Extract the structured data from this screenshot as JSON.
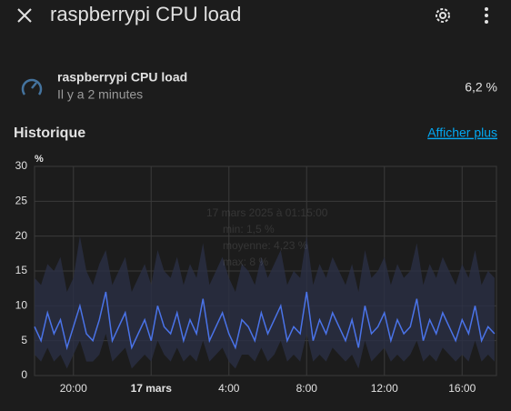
{
  "header": {
    "title": "raspberrypi CPU load"
  },
  "entity": {
    "name": "raspberrypi CPU load",
    "last_changed": "Il y a 2 minutes",
    "state": "6,2 %"
  },
  "history": {
    "title": "Historique",
    "link": "Afficher plus"
  },
  "chart_data": {
    "type": "line",
    "y_unit": "%",
    "categories": [
      null,
      null,
      null,
      null,
      null,
      null,
      "20:00",
      null,
      null,
      null,
      null,
      null,
      null,
      null,
      null,
      null,
      null,
      null,
      "17 mars",
      null,
      null,
      null,
      null,
      null,
      null,
      null,
      null,
      null,
      null,
      null,
      "4:00",
      null,
      null,
      null,
      null,
      null,
      null,
      null,
      null,
      null,
      null,
      null,
      "8:00",
      null,
      null,
      null,
      null,
      null,
      null,
      null,
      null,
      null,
      null,
      null,
      "12:00",
      null,
      null,
      null,
      null,
      null,
      null,
      null,
      null,
      null,
      null,
      null,
      "16:00",
      null,
      null,
      null,
      null,
      null
    ],
    "bold_categories": [
      "17 mars"
    ],
    "series": [
      {
        "color": "#4a73e8",
        "values": [
          7,
          5,
          9,
          6,
          8,
          4,
          7,
          10,
          6,
          5,
          8,
          12,
          5,
          7,
          9,
          4,
          6,
          8,
          5,
          10,
          7,
          6,
          9,
          5,
          8,
          6,
          11,
          5,
          7,
          9,
          6,
          4,
          8,
          7,
          5,
          9,
          6,
          8,
          10,
          5,
          7,
          6,
          12,
          5,
          8,
          6,
          9,
          7,
          5,
          8,
          4,
          10,
          6,
          7,
          9,
          5,
          8,
          6,
          7,
          11,
          5,
          8,
          6,
          9,
          7,
          5,
          8,
          6,
          10,
          5,
          7,
          6
        ]
      }
    ],
    "band": {
      "color": "#2a3045",
      "upper": [
        14,
        13,
        16,
        15,
        17,
        12,
        14,
        20,
        15,
        13,
        16,
        18,
        13,
        15,
        17,
        12,
        14,
        16,
        13,
        18,
        15,
        14,
        17,
        13,
        16,
        14,
        19,
        13,
        15,
        17,
        14,
        12,
        16,
        15,
        13,
        17,
        14,
        16,
        18,
        13,
        15,
        14,
        20,
        13,
        16,
        14,
        17,
        15,
        13,
        16,
        12,
        18,
        14,
        15,
        17,
        13,
        16,
        14,
        15,
        19,
        13,
        16,
        14,
        17,
        15,
        13,
        16,
        14,
        18,
        13,
        15,
        14
      ],
      "lower": [
        3,
        2,
        4,
        2,
        3,
        1,
        3,
        5,
        2,
        2,
        3,
        6,
        2,
        3,
        4,
        1,
        2,
        3,
        2,
        5,
        3,
        2,
        4,
        2,
        3,
        2,
        5,
        2,
        3,
        4,
        2,
        1,
        3,
        3,
        2,
        4,
        2,
        3,
        5,
        2,
        3,
        2,
        6,
        2,
        3,
        2,
        4,
        3,
        2,
        3,
        1,
        5,
        2,
        3,
        4,
        2,
        3,
        2,
        3,
        5,
        2,
        3,
        2,
        4,
        3,
        2,
        3,
        2,
        5,
        2,
        3,
        2
      ]
    },
    "ylim": [
      0,
      30
    ],
    "yticks": [
      0,
      5,
      10,
      15,
      20,
      25,
      30
    ],
    "grid": true,
    "tooltip": [
      "17 mars 2025 à 01:15:00",
      "min: 1,5 %",
      "moyenne: 4,23 %",
      "max: 8 %"
    ]
  }
}
